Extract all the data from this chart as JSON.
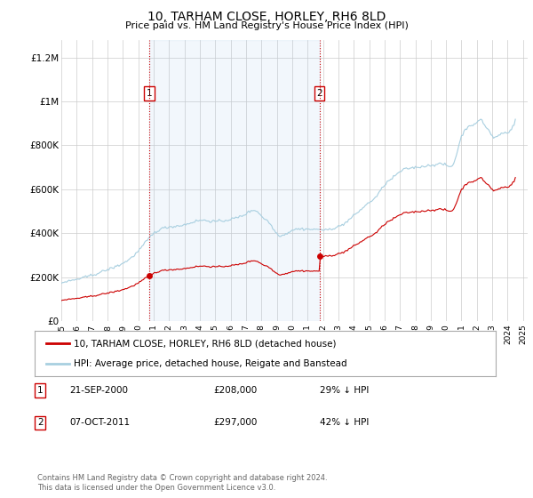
{
  "title": "10, TARHAM CLOSE, HORLEY, RH6 8LD",
  "subtitle": "Price paid vs. HM Land Registry's House Price Index (HPI)",
  "hpi_color": "#a8cfe0",
  "sale_color": "#cc0000",
  "shade_color": "#ddeeff",
  "ylim": [
    0,
    1280000
  ],
  "xlim_start": 1995.5,
  "xlim_end": 2025.3,
  "yticks": [
    0,
    200000,
    400000,
    600000,
    800000,
    1000000,
    1200000
  ],
  "ytick_labels": [
    "£0",
    "£200K",
    "£400K",
    "£600K",
    "£800K",
    "£1M",
    "£1.2M"
  ],
  "xticks": [
    1995,
    1996,
    1997,
    1998,
    1999,
    2000,
    2001,
    2002,
    2003,
    2004,
    2005,
    2006,
    2007,
    2008,
    2009,
    2010,
    2011,
    2012,
    2013,
    2014,
    2015,
    2016,
    2017,
    2018,
    2019,
    2020,
    2021,
    2022,
    2023,
    2024,
    2025
  ],
  "sale_years": [
    2000.72,
    2011.77
  ],
  "sale_prices": [
    208000,
    297000
  ],
  "sale_labels": [
    "1",
    "2"
  ],
  "legend_line1": "10, TARHAM CLOSE, HORLEY, RH6 8LD (detached house)",
  "legend_line2": "HPI: Average price, detached house, Reigate and Banstead",
  "annotation1_label": "1",
  "annotation1_date": "21-SEP-2000",
  "annotation1_price": "£208,000",
  "annotation1_hpi": "29% ↓ HPI",
  "annotation2_label": "2",
  "annotation2_date": "07-OCT-2011",
  "annotation2_price": "£297,000",
  "annotation2_hpi": "42% ↓ HPI",
  "footer": "Contains HM Land Registry data © Crown copyright and database right 2024.\nThis data is licensed under the Open Government Licence v3.0.",
  "bg_color": "#ffffff",
  "grid_color": "#cccccc"
}
